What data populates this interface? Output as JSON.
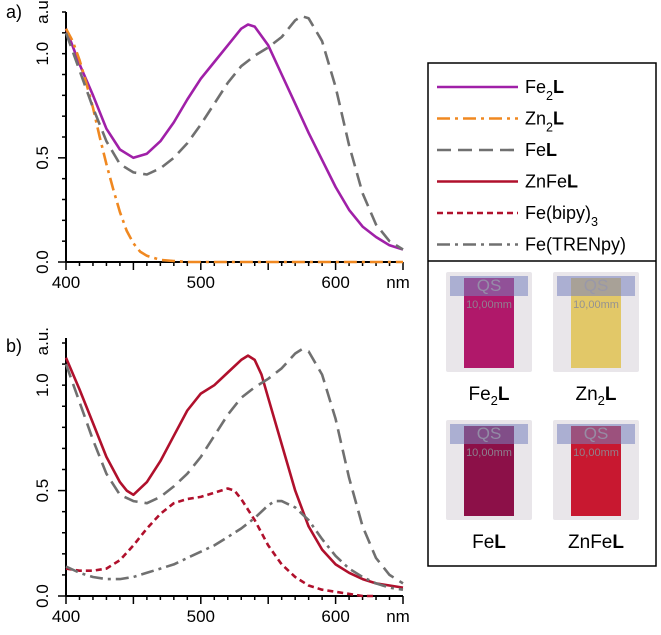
{
  "colors": {
    "Fe2L": "#a020a8",
    "Zn2L": "#f08820",
    "FeL": "#707070",
    "ZnFeL": "#b0102c",
    "Febipy3": "#b0102c",
    "FeTRENpy": "#707070"
  },
  "legend": [
    {
      "key": "Fe2L",
      "base": "Fe",
      "sub": "2",
      "bold": "L",
      "tail": ""
    },
    {
      "key": "Zn2L",
      "base": "Zn",
      "sub": "2",
      "bold": "L",
      "tail": ""
    },
    {
      "key": "FeL",
      "base": "Fe",
      "sub": "",
      "bold": "L",
      "tail": ""
    },
    {
      "key": "ZnFeL",
      "base": "ZnFe",
      "sub": "",
      "bold": "L",
      "tail": ""
    },
    {
      "key": "Febipy3",
      "base": "Fe(bipy)",
      "sub": "3",
      "bold": "",
      "tail": ""
    },
    {
      "key": "FeTRENpy",
      "base": "Fe(TRENpy)",
      "sub": "",
      "bold": "",
      "tail": ""
    }
  ],
  "cuvettes": [
    {
      "key": "Fe2L",
      "base": "Fe",
      "sub": "2",
      "bold": "L",
      "color": "#b0186a",
      "qs": "QS",
      "mm": "10,00mm"
    },
    {
      "key": "Zn2L",
      "base": "Zn",
      "sub": "2",
      "bold": "L",
      "color": "#e2c868",
      "qs": "QS",
      "mm": "10,00mm"
    },
    {
      "key": "FeL",
      "base": "Fe",
      "sub": "",
      "bold": "L",
      "color": "#8c1048",
      "qs": "QS",
      "mm": "10,00mm"
    },
    {
      "key": "ZnFeL",
      "base": "ZnFe",
      "sub": "",
      "bold": "L",
      "color": "#c81830",
      "qs": "QS",
      "mm": "10,00mm"
    }
  ],
  "chart_data": [
    {
      "panel_label": "a)",
      "type": "line",
      "xlabel": "nm",
      "ylabel": "a.u.",
      "xlim": [
        400,
        650
      ],
      "ylim": [
        0,
        1.2
      ],
      "xticks": [
        "400",
        "500",
        "600"
      ],
      "yticks": [
        "0.0",
        "0.5",
        "1.0"
      ],
      "series": [
        {
          "key": "Fe2L",
          "name": "Fe2L",
          "dash": "solid",
          "x": [
            400,
            410,
            420,
            430,
            440,
            450,
            460,
            470,
            480,
            490,
            500,
            510,
            520,
            530,
            535,
            540,
            550,
            560,
            570,
            580,
            590,
            600,
            610,
            620,
            630,
            640,
            650
          ],
          "y": [
            1.12,
            0.95,
            0.8,
            0.64,
            0.54,
            0.5,
            0.52,
            0.58,
            0.67,
            0.78,
            0.88,
            0.96,
            1.04,
            1.12,
            1.14,
            1.13,
            1.04,
            0.9,
            0.76,
            0.62,
            0.49,
            0.36,
            0.25,
            0.17,
            0.12,
            0.08,
            0.06
          ]
        },
        {
          "key": "Zn2L",
          "name": "Zn2L",
          "dash": "dashdot",
          "x": [
            400,
            405,
            410,
            415,
            420,
            425,
            430,
            435,
            440,
            445,
            450,
            455,
            460,
            470,
            480,
            490,
            500,
            520,
            550,
            600,
            650
          ],
          "y": [
            1.12,
            1.06,
            0.97,
            0.86,
            0.74,
            0.6,
            0.47,
            0.35,
            0.24,
            0.15,
            0.09,
            0.05,
            0.03,
            0.01,
            0.005,
            0.0,
            0.0,
            0.0,
            0.0,
            0.0,
            0.0
          ]
        },
        {
          "key": "FeL",
          "name": "FeL",
          "dash": "dash",
          "x": [
            400,
            410,
            420,
            430,
            440,
            450,
            460,
            470,
            480,
            490,
            500,
            510,
            520,
            530,
            540,
            550,
            560,
            570,
            575,
            580,
            590,
            600,
            610,
            620,
            630,
            640,
            650
          ],
          "y": [
            1.1,
            0.92,
            0.74,
            0.58,
            0.47,
            0.43,
            0.42,
            0.45,
            0.5,
            0.57,
            0.66,
            0.76,
            0.86,
            0.94,
            0.99,
            1.03,
            1.08,
            1.16,
            1.18,
            1.17,
            1.06,
            0.84,
            0.56,
            0.33,
            0.18,
            0.1,
            0.06
          ]
        }
      ]
    },
    {
      "panel_label": "b)",
      "type": "line",
      "xlabel": "nm",
      "ylabel": "a.u.",
      "xlim": [
        400,
        650
      ],
      "ylim": [
        0,
        1.2
      ],
      "xticks": [
        "400",
        "500",
        "600"
      ],
      "yticks": [
        "0.0",
        "0.5",
        "1.0"
      ],
      "series": [
        {
          "key": "ZnFeL",
          "name": "ZnFeL",
          "dash": "solid",
          "x": [
            400,
            410,
            420,
            430,
            440,
            445,
            450,
            460,
            470,
            480,
            490,
            500,
            510,
            520,
            530,
            535,
            540,
            545,
            550,
            560,
            570,
            580,
            590,
            600,
            610,
            620,
            630,
            640,
            650
          ],
          "y": [
            1.13,
            0.98,
            0.82,
            0.66,
            0.54,
            0.5,
            0.48,
            0.54,
            0.64,
            0.76,
            0.88,
            0.96,
            1.0,
            1.06,
            1.12,
            1.14,
            1.12,
            1.05,
            0.94,
            0.72,
            0.5,
            0.33,
            0.22,
            0.15,
            0.11,
            0.08,
            0.06,
            0.05,
            0.04
          ]
        },
        {
          "key": "FeL",
          "name": "FeL",
          "dash": "dash",
          "x": [
            400,
            410,
            420,
            430,
            440,
            450,
            460,
            470,
            480,
            490,
            500,
            510,
            520,
            530,
            540,
            550,
            560,
            570,
            575,
            580,
            590,
            600,
            610,
            620,
            630,
            640,
            650
          ],
          "y": [
            1.1,
            0.92,
            0.74,
            0.58,
            0.48,
            0.45,
            0.44,
            0.47,
            0.52,
            0.58,
            0.66,
            0.76,
            0.86,
            0.94,
            0.99,
            1.03,
            1.08,
            1.15,
            1.17,
            1.16,
            1.05,
            0.84,
            0.56,
            0.33,
            0.18,
            0.1,
            0.06
          ]
        },
        {
          "key": "Febipy3",
          "name": "Fe(bipy)3",
          "dash": "shortdash",
          "x": [
            400,
            410,
            420,
            430,
            440,
            450,
            460,
            470,
            480,
            490,
            500,
            510,
            520,
            525,
            530,
            540,
            550,
            560,
            570,
            580,
            590,
            600,
            610,
            620,
            630
          ],
          "y": [
            0.13,
            0.12,
            0.12,
            0.13,
            0.17,
            0.24,
            0.32,
            0.39,
            0.44,
            0.46,
            0.47,
            0.49,
            0.51,
            0.5,
            0.46,
            0.36,
            0.24,
            0.15,
            0.09,
            0.05,
            0.03,
            0.02,
            0.01,
            0.0,
            0.0
          ]
        },
        {
          "key": "FeTRENpy",
          "name": "Fe(TRENpy)",
          "dash": "dashdot",
          "x": [
            400,
            410,
            420,
            430,
            440,
            450,
            460,
            470,
            480,
            490,
            500,
            510,
            520,
            530,
            540,
            550,
            555,
            560,
            570,
            580,
            590,
            600,
            610,
            620,
            630,
            640,
            650
          ],
          "y": [
            0.14,
            0.11,
            0.09,
            0.08,
            0.08,
            0.09,
            0.11,
            0.13,
            0.15,
            0.18,
            0.21,
            0.24,
            0.28,
            0.32,
            0.37,
            0.43,
            0.45,
            0.45,
            0.42,
            0.36,
            0.27,
            0.19,
            0.13,
            0.09,
            0.06,
            0.04,
            0.03
          ]
        }
      ]
    }
  ]
}
